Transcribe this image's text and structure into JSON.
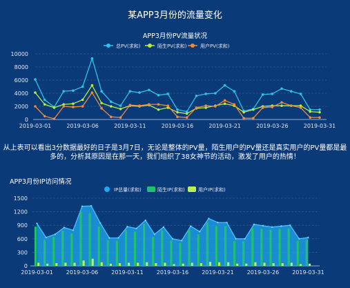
{
  "page": {
    "title": "某APP3月份的流量变化",
    "analysis": "从上表可以看出3分数据最好的日子是3月7日，无论是整体的PV量，陌生用户的PV量还是真实用户的PV量都是最多的，分析其原因是在那一天，我们组织了38女神节的活动，激发了用户的热情！"
  },
  "colors": {
    "background": "#0b3a78",
    "pv_total": "#2bc4e8",
    "pv_stranger": "#b5ec3d",
    "pv_user": "#f08a3c",
    "ip_total": "#1fa8f0",
    "ip_stranger": "#20c070",
    "ip_user": "#b9f05a"
  },
  "chart_data": [
    {
      "type": "line",
      "title": "APP3月份PV流量状况",
      "x": [
        "2019-03-01",
        "2019-03-02",
        "2019-03-03",
        "2019-03-04",
        "2019-03-05",
        "2019-03-06",
        "2019-03-07",
        "2019-03-08",
        "2019-03-09",
        "2019-03-10",
        "2019-03-11",
        "2019-03-12",
        "2019-03-13",
        "2019-03-14",
        "2019-03-15",
        "2019-03-16",
        "2019-03-17",
        "2019-03-18",
        "2019-03-19",
        "2019-03-20",
        "2019-03-21",
        "2019-03-22",
        "2019-03-23",
        "2019-03-24",
        "2019-03-25",
        "2019-03-26",
        "2019-03-27",
        "2019-03-28",
        "2019-03-29",
        "2019-03-30",
        "2019-03-31"
      ],
      "x_ticks": [
        "2019-03-01",
        "2019-03-06",
        "2019-03-11",
        "2019-03-16",
        "2019-03-21",
        "2019-03-26",
        "2019-03-31"
      ],
      "ylim": [
        0,
        10000
      ],
      "y_ticks": [
        0,
        2000,
        4000,
        6000,
        8000,
        10000
      ],
      "legend_position": "top",
      "series": [
        {
          "name": "总PV(求和)",
          "values": [
            6100,
            3000,
            1900,
            4300,
            4400,
            5000,
            9300,
            4300,
            2700,
            2100,
            4300,
            4100,
            4500,
            3700,
            3900,
            1500,
            1200,
            3600,
            3900,
            4000,
            5200,
            4300,
            1300,
            1600,
            3800,
            3900,
            4700,
            4300,
            3900,
            1500,
            1500
          ]
        },
        {
          "name": "陌生PV(求和)",
          "values": [
            4100,
            2300,
            1800,
            2300,
            2400,
            3000,
            5200,
            2500,
            2000,
            1600,
            2100,
            2000,
            2200,
            1500,
            1800,
            1100,
            900,
            1700,
            1800,
            2100,
            2400,
            2100,
            1100,
            1500,
            2000,
            2100,
            2100,
            2100,
            2100,
            1200,
            1100
          ]
        },
        {
          "name": "用户PV(求和)",
          "values": [
            2000,
            500,
            100,
            2000,
            1900,
            2000,
            4100,
            1700,
            400,
            300,
            2200,
            2100,
            2300,
            2300,
            2100,
            400,
            300,
            1800,
            2100,
            2000,
            2900,
            2300,
            200,
            200,
            1800,
            1900,
            2600,
            2100,
            1800,
            300,
            300
          ]
        }
      ]
    },
    {
      "type": "bar",
      "title": "APP3月份IP访问情况",
      "x": [
        "2019-03-01",
        "2019-03-02",
        "2019-03-03",
        "2019-03-04",
        "2019-03-05",
        "2019-03-06",
        "2019-03-07",
        "2019-03-08",
        "2019-03-09",
        "2019-03-10",
        "2019-03-11",
        "2019-03-12",
        "2019-03-13",
        "2019-03-14",
        "2019-03-15",
        "2019-03-16",
        "2019-03-17",
        "2019-03-18",
        "2019-03-19",
        "2019-03-20",
        "2019-03-21",
        "2019-03-22",
        "2019-03-23",
        "2019-03-24",
        "2019-03-25",
        "2019-03-26",
        "2019-03-27",
        "2019-03-28",
        "2019-03-29",
        "2019-03-30",
        "2019-03-31"
      ],
      "x_ticks": [
        "2019-03-01",
        "2019-03-06",
        "2019-03-11",
        "2019-03-16",
        "2019-03-21",
        "2019-03-26",
        "2019-03-31"
      ],
      "ylim": [
        0,
        1500
      ],
      "y_ticks": [
        0,
        150,
        300,
        450,
        600,
        750,
        900,
        1050,
        1200,
        1350,
        1500
      ],
      "legend_position": "top",
      "series": [
        {
          "name": "IP总量(求和)",
          "type": "area",
          "values": [
            940,
            630,
            700,
            850,
            790,
            1320,
            1330,
            950,
            620,
            620,
            870,
            830,
            1010,
            700,
            860,
            600,
            560,
            880,
            760,
            1050,
            960,
            960,
            600,
            600,
            920,
            890,
            860,
            880,
            900,
            600,
            630
          ]
        },
        {
          "name": "陌生IP(求和)",
          "type": "bar",
          "values": [
            870,
            580,
            640,
            780,
            720,
            1200,
            1170,
            870,
            570,
            560,
            800,
            760,
            930,
            640,
            790,
            560,
            510,
            810,
            700,
            960,
            880,
            880,
            550,
            550,
            840,
            820,
            800,
            820,
            830,
            560,
            580
          ]
        },
        {
          "name": "用户IP(求和)",
          "type": "bar",
          "values": [
            70,
            50,
            60,
            70,
            70,
            120,
            160,
            80,
            50,
            60,
            70,
            70,
            80,
            60,
            70,
            40,
            50,
            70,
            60,
            90,
            80,
            80,
            50,
            50,
            80,
            70,
            60,
            60,
            70,
            40,
            50
          ]
        }
      ]
    }
  ]
}
